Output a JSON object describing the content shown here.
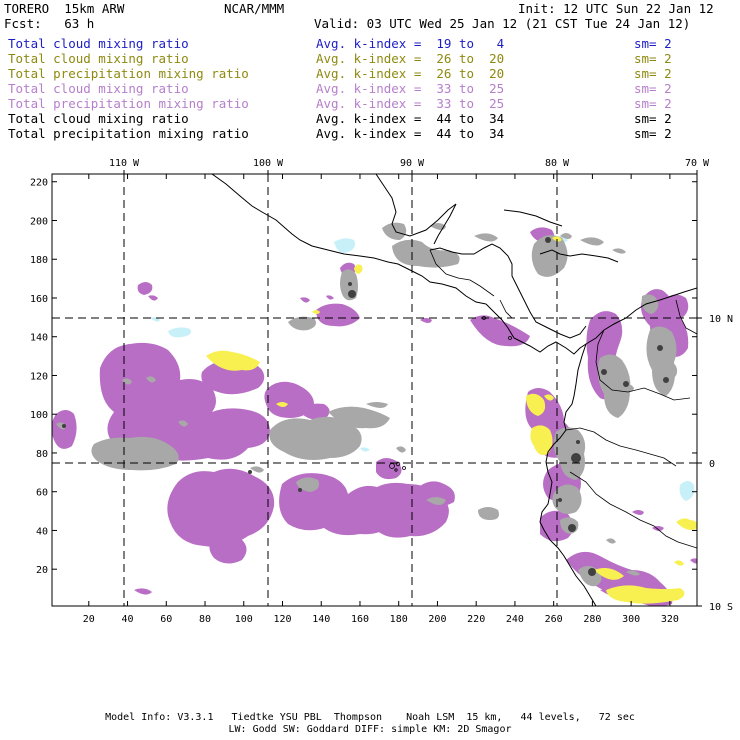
{
  "header": {
    "model": "TORERO  15km ARW",
    "org": "NCAR/MMM",
    "init": "Init: 12 UTC Sun 22 Jan 12",
    "fcst": "Fcst:   63 h",
    "valid": "Valid: 03 UTC Wed 25 Jan 12 (21 CST Tue 24 Jan 12)"
  },
  "legend": [
    {
      "field": "Total cloud mixing ratio",
      "kindex": "Avg. k-index =  19 to   4",
      "sm": "sm= 2",
      "color": "#1d1dc8"
    },
    {
      "field": "Total cloud mixing ratio",
      "kindex": "Avg. k-index =  26 to  20",
      "sm": "sm= 2",
      "color": "#8e8a10"
    },
    {
      "field": "Total precipitation mixing ratio",
      "kindex": "Avg. k-index =  26 to  20",
      "sm": "sm= 2",
      "color": "#8e8a10"
    },
    {
      "field": "Total cloud mixing ratio",
      "kindex": "Avg. k-index =  33 to  25",
      "sm": "sm= 2",
      "color": "#b67fcb"
    },
    {
      "field": "Total precipitation mixing ratio",
      "kindex": "Avg. k-index =  33 to  25",
      "sm": "sm= 2",
      "color": "#b67fcb"
    },
    {
      "field": "Total cloud mixing ratio",
      "kindex": "Avg. k-index =  44 to  34",
      "sm": "sm= 2",
      "color": "#000000"
    },
    {
      "field": "Total precipitation mixing ratio",
      "kindex": "Avg. k-index =  44 to  34",
      "sm": "sm= 2",
      "color": "#000000"
    }
  ],
  "map": {
    "lon_labels": [
      "110 W",
      "100 W",
      "90 W",
      "80 W",
      "70 W"
    ],
    "lat_labels": [
      "10 N",
      "0",
      "10 S"
    ],
    "x_ticks": [
      "20",
      "40",
      "60",
      "80",
      "100",
      "120",
      "140",
      "160",
      "180",
      "200",
      "220",
      "240",
      "260",
      "280",
      "300",
      "320"
    ],
    "y_ticks": [
      "220",
      "200",
      "180",
      "160",
      "140",
      "120",
      "100",
      "80",
      "60",
      "40",
      "20"
    ],
    "x_range": [
      1,
      334
    ],
    "y_range": [
      1,
      224
    ],
    "colors": {
      "cyan": "#c8f0f8",
      "yellow": "#f8f050",
      "purple": "#b86ec4",
      "gray": "#a8a8a8",
      "dark": "#404040",
      "coast": "#000000"
    }
  },
  "footer": {
    "line1": "Model Info: V3.3.1   Tiedtke YSU PBL  Thompson    Noah LSM  15 km,   44 levels,   72 sec",
    "line2": "LW: Godd SW: Goddard DIFF: simple KM: 2D Smagor"
  }
}
